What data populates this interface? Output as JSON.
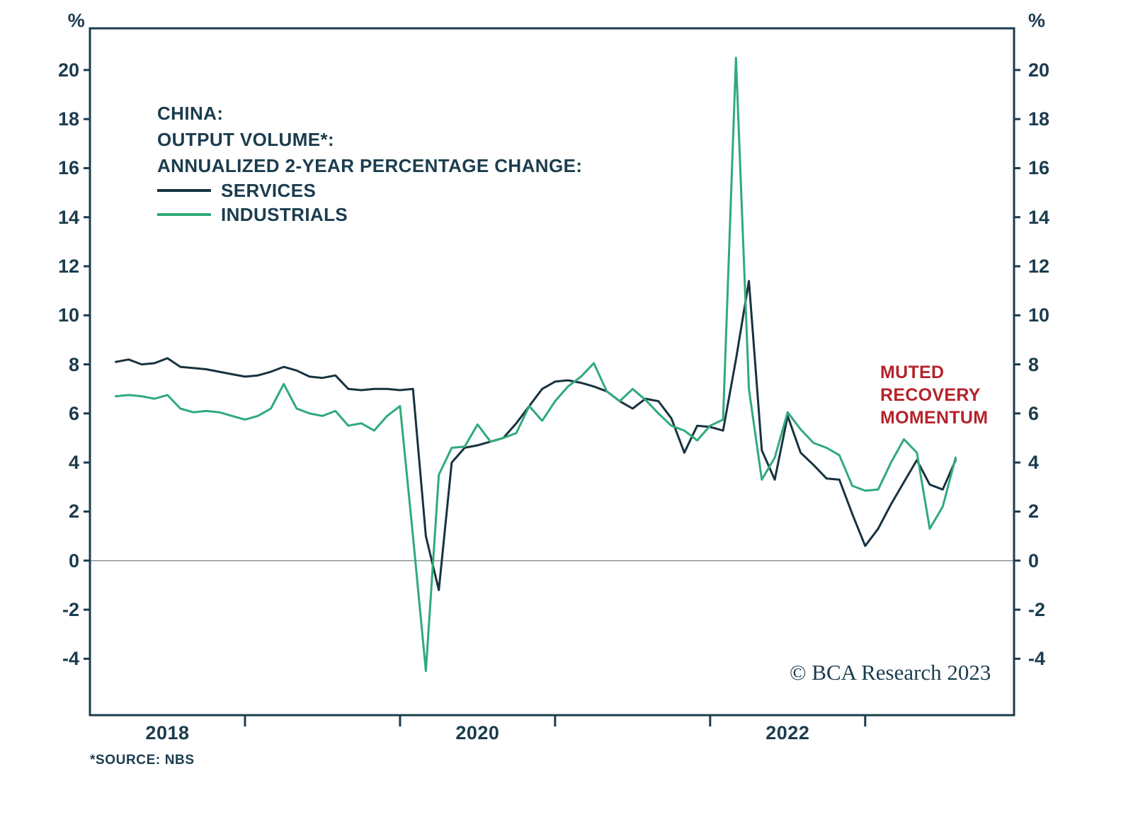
{
  "page": {
    "background": "#ffffff",
    "text_color": "#1b3c4e"
  },
  "header": {
    "title_lines": [
      "CHINA:",
      "OUTPUT VOLUME*:",
      "ANNUALIZED 2-YEAR PERCENTAGE CHANGE:"
    ]
  },
  "legend": [
    {
      "label": "SERVICES",
      "color": "#18323f"
    },
    {
      "label": "INDUSTRIALS",
      "color": "#2faa7b"
    }
  ],
  "annotation": {
    "lines": [
      "MUTED",
      "RECOVERY",
      "MOMENTUM"
    ],
    "color": "#b5232b"
  },
  "axis": {
    "percent_left": "%",
    "percent_right": "%"
  },
  "footer": {
    "source": "*SOURCE: NBS",
    "copyright": "© BCA Research 2023"
  },
  "chart_data": {
    "type": "line",
    "title": "CHINA: OUTPUT VOLUME*: ANNUALIZED 2-YEAR PERCENTAGE CHANGE",
    "ylabel": "%",
    "grid": "zero-line-only",
    "legend_position": "top-left-inside",
    "frame_color": "#1b3c4e",
    "zero_line_color": "#8f979b",
    "x_domain": [
      2018.0,
      2023.96
    ],
    "y_domain": [
      -6.3,
      21.7
    ],
    "x_start": 2018.1667,
    "x_step_months": 1,
    "yticks": [
      -4,
      -2,
      0,
      2,
      4,
      6,
      8,
      10,
      12,
      14,
      16,
      18,
      20
    ],
    "xticks_years": [
      2019,
      2020,
      2021,
      2022,
      2023
    ],
    "xtick_labels": [
      {
        "label": "2018",
        "x": 2018.5
      },
      {
        "label": "2020",
        "x": 2020.5
      },
      {
        "label": "2022",
        "x": 2022.5
      }
    ],
    "series": [
      {
        "name": "SERVICES",
        "color": "#18323f",
        "values": [
          8.1,
          8.2,
          8.0,
          8.05,
          8.25,
          7.9,
          7.85,
          7.8,
          7.7,
          7.6,
          7.5,
          7.55,
          7.7,
          7.9,
          7.75,
          7.5,
          7.45,
          7.55,
          7.0,
          6.95,
          7.0,
          7.0,
          6.95,
          7.0,
          1.0,
          -1.2,
          4.0,
          4.6,
          4.7,
          4.85,
          5.0,
          5.6,
          6.3,
          7.0,
          7.3,
          7.35,
          7.25,
          7.1,
          6.9,
          6.5,
          6.2,
          6.6,
          6.5,
          5.8,
          4.4,
          5.5,
          5.45,
          5.3,
          8.2,
          11.4,
          4.5,
          3.3,
          5.9,
          4.4,
          3.9,
          3.35,
          3.3,
          1.9,
          0.6,
          1.3,
          2.3,
          3.2,
          4.1,
          3.1,
          2.9,
          4.1
        ]
      },
      {
        "name": "INDUSTRIALS",
        "color": "#2faa7b",
        "values": [
          6.7,
          6.75,
          6.7,
          6.6,
          6.75,
          6.2,
          6.05,
          6.1,
          6.05,
          5.9,
          5.75,
          5.9,
          6.2,
          7.2,
          6.2,
          6.0,
          5.9,
          6.1,
          5.5,
          5.6,
          5.3,
          5.9,
          6.3,
          1.0,
          -4.5,
          3.5,
          4.6,
          4.65,
          5.55,
          4.85,
          5.0,
          5.2,
          6.3,
          5.7,
          6.5,
          7.1,
          7.5,
          8.05,
          6.9,
          6.5,
          7.0,
          6.55,
          6.0,
          5.5,
          5.3,
          4.9,
          5.5,
          5.75,
          20.5,
          7.0,
          3.3,
          4.2,
          6.05,
          5.35,
          4.8,
          4.6,
          4.3,
          3.05,
          2.85,
          2.9,
          4.0,
          4.95,
          4.4,
          1.3,
          2.2,
          4.2
        ]
      }
    ]
  }
}
